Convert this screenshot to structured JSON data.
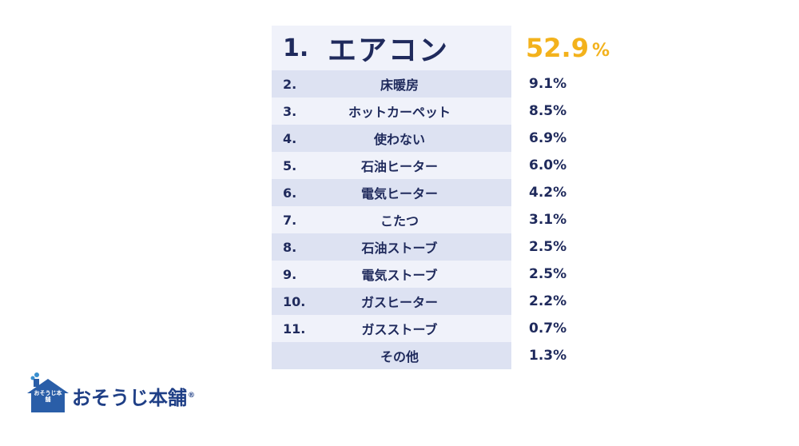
{
  "chart_data": {
    "type": "table",
    "categories": [
      "エアコン",
      "床暖房",
      "ホットカーペット",
      "使わない",
      "石油ヒーター",
      "電気ヒーター",
      "こたつ",
      "石油ストーブ",
      "電気ストーブ",
      "ガスヒーター",
      "ガスストーブ",
      "その他"
    ],
    "ranks": [
      "1.",
      "2.",
      "3.",
      "4.",
      "5.",
      "6.",
      "7.",
      "8.",
      "9.",
      "10.",
      "11.",
      ""
    ],
    "values": [
      52.9,
      9.1,
      8.5,
      6.9,
      6.0,
      4.2,
      3.1,
      2.5,
      2.5,
      2.2,
      0.7,
      1.3
    ],
    "value_labels": [
      "52.9",
      "9.1%",
      "8.5%",
      "6.9%",
      "6.0%",
      "4.2%",
      "3.1%",
      "2.5%",
      "2.5%",
      "2.2%",
      "0.7%",
      "1.3%"
    ],
    "top_unit": "%",
    "highlight_color": "#f3b21c",
    "text_color": "#1f2a5c"
  },
  "logo": {
    "name": "おそうじ本舗",
    "house_label": "おそうじ本舗"
  }
}
